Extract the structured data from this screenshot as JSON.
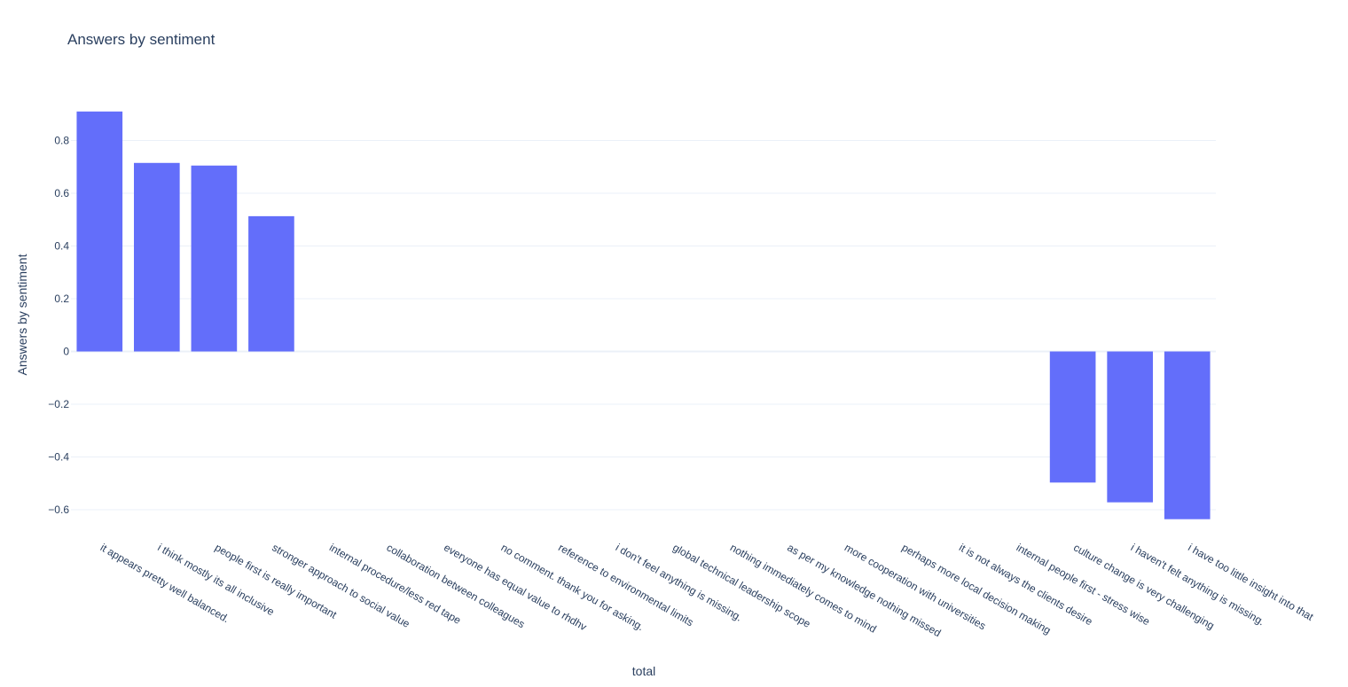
{
  "chart_data": {
    "type": "bar",
    "title": "Answers by sentiment",
    "xlabel": "total",
    "ylabel": "Answers by sentiment",
    "ylim": [
      -0.7,
      0.94
    ],
    "yticks": [
      0.8,
      0.6,
      0.4,
      0.2,
      0,
      -0.2,
      -0.4,
      -0.6
    ],
    "ytick_labels": [
      "0.8",
      "0.6",
      "0.4",
      "0.2",
      "0",
      "−0.2",
      "−0.4",
      "−0.6"
    ],
    "grid": true,
    "bar_color": "#636efa",
    "categories": [
      "it appears pretty well balanced.",
      "i think mostly its all inclusive",
      "people first is really important",
      "stronger approach to social value",
      "internal procedure/less red tape",
      "collaboration between colleagues",
      "everyone has equal value to rhdhv",
      "no comment. thank you for asking.",
      "reference to environmental limits",
      "i don't feel anything is missing.",
      "global technical leadership scope",
      "nothing immediately comes to mind",
      "as per my knowledge nothing missed",
      "more cooperation with universities",
      "perhaps more local decision making",
      "it is not always the clients desire",
      "internal people first - stress wise",
      "culture change is very challenging",
      "i haven't felt anything is missing.",
      "i have too little insight into that"
    ],
    "values": [
      0.91,
      0.715,
      0.705,
      0.513,
      0,
      0,
      0,
      0,
      0,
      0,
      0,
      0,
      0,
      0,
      0,
      0,
      0,
      -0.497,
      -0.572,
      -0.636
    ]
  }
}
